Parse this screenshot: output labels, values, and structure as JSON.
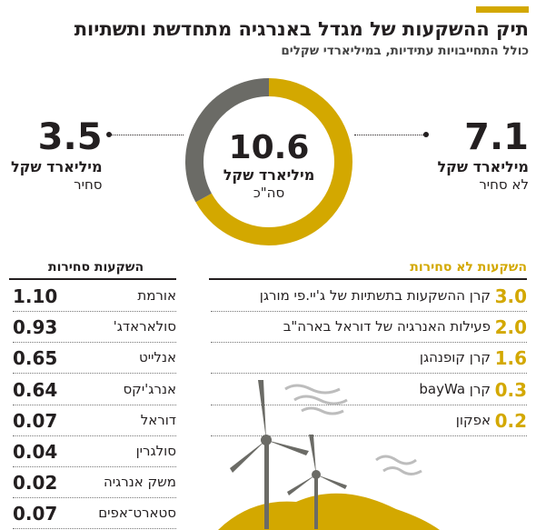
{
  "header": {
    "title": "תיק ההשקעות של מגדל באנרגיה מתחדשת ותשתיות",
    "subtitle": "כולל התחייבויות עתידיות, במיליארדי שקלים"
  },
  "colors": {
    "accent": "#d3a800",
    "dark": "#6b6b66",
    "text": "#231f20"
  },
  "summary": {
    "total_value": "10.6",
    "total_unit": "מיליארד שקל",
    "total_label": "סה\"כ",
    "traded_value": "3.5",
    "traded_unit": "מיליארד שקל",
    "traded_label": "סחיר",
    "nontraded_value": "7.1",
    "nontraded_unit": "מיליארד שקל",
    "nontraded_label": "לא סחיר"
  },
  "chart_data": [
    {
      "type": "pie",
      "title": "",
      "categories": [
        "לא סחיר",
        "סחיר"
      ],
      "values": [
        7.1,
        3.5
      ],
      "total": 10.6,
      "colors": [
        "#d3a800",
        "#6b6b66"
      ],
      "donut": true
    },
    {
      "type": "table",
      "title": "השקעות לא סחירות",
      "rows": [
        {
          "label": "קרן ההשקעות בתשתיות של ג'יי.פי מורגן",
          "value": "3.0"
        },
        {
          "label": "פעילות האנרגיה של דוראל בארה\"ב",
          "value": "2.0"
        },
        {
          "label": "קרן קופנהגן",
          "value": "1.6"
        },
        {
          "label": "קרן bayWa",
          "value": "0.3"
        },
        {
          "label": "אפקון",
          "value": "0.2"
        }
      ]
    },
    {
      "type": "table",
      "title": "השקעות סחירות",
      "rows": [
        {
          "label": "אורמת",
          "value": "1.10"
        },
        {
          "label": "סולאראדג'",
          "value": "0.93"
        },
        {
          "label": "אנלייט",
          "value": "0.65"
        },
        {
          "label": "אנרג'יקס",
          "value": "0.64"
        },
        {
          "label": "דוראל",
          "value": "0.07"
        },
        {
          "label": "סולגרין",
          "value": "0.04"
        },
        {
          "label": "משק אנרגיה",
          "value": "0.02"
        },
        {
          "label": "סטארט־אפים",
          "value": "0.07"
        }
      ]
    }
  ],
  "illustration": {
    "icon": "wind-turbines-icon"
  }
}
